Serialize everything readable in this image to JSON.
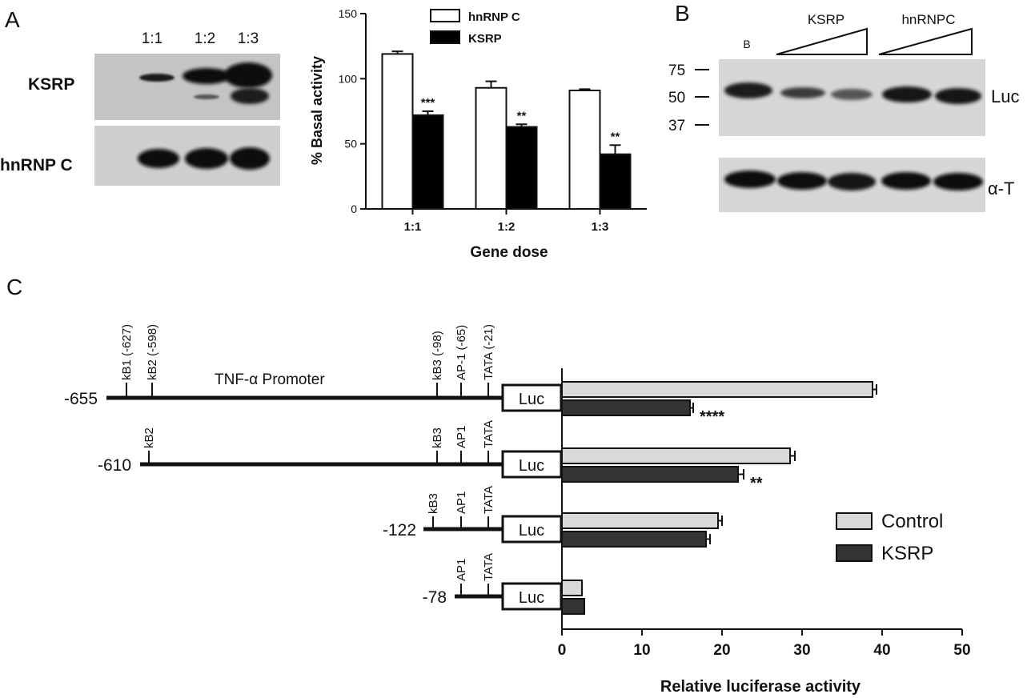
{
  "panels": {
    "a": {
      "letter": "A"
    },
    "b": {
      "letter": "B"
    },
    "c": {
      "letter": "C"
    }
  },
  "blot_a": {
    "lane_labels": [
      "1:1",
      "1:2",
      "1:3"
    ],
    "row_labels": [
      "KSRP",
      "hnRNP C"
    ]
  },
  "blot_b": {
    "lane0_label": "B",
    "group_labels": [
      "KSRP",
      "hnRNPC"
    ],
    "markers": [
      "75",
      "50",
      "37"
    ],
    "right_labels": [
      "Luc",
      "α-T"
    ]
  },
  "promoter": {
    "title": "TNF-α Promoter",
    "luc_label": "Luc",
    "constructs": [
      {
        "start": "-655",
        "sites": [
          "kB1 (-627)",
          "kB2 (-598)",
          "kB3 (-98)",
          "AP-1 (-65)",
          "TATA (-21)"
        ]
      },
      {
        "start": "-610",
        "sites": [
          "kB2",
          "kB3",
          "AP1",
          "TATA"
        ]
      },
      {
        "start": "-122",
        "sites": [
          "kB3",
          "AP1",
          "TATA"
        ]
      },
      {
        "start": "-78",
        "sites": [
          "AP1",
          "TATA"
        ]
      }
    ]
  },
  "chart_data": [
    {
      "type": "bar",
      "panel": "A",
      "categories": [
        "1:1",
        "1:2",
        "1:3"
      ],
      "series": [
        {
          "name": "hnRNP C",
          "values": [
            119,
            93,
            91
          ],
          "errors": [
            2,
            5,
            1
          ],
          "color": "#ffffff"
        },
        {
          "name": "KSRP",
          "values": [
            72,
            63,
            42
          ],
          "errors": [
            3,
            2,
            7
          ],
          "color": "#000000"
        }
      ],
      "significance": [
        "***",
        "**",
        "**"
      ],
      "xlabel": "Gene dose",
      "ylabel": "% Basal activity",
      "ylim": [
        0,
        150
      ],
      "yticks": [
        "0",
        "50",
        "100",
        "150"
      ],
      "legend_position": "top"
    },
    {
      "type": "bar",
      "panel": "C",
      "orientation": "horizontal",
      "categories": [
        "-655",
        "-610",
        "-122",
        "-78"
      ],
      "series": [
        {
          "name": "Control",
          "values": [
            38.8,
            28.5,
            19.5,
            2.5
          ],
          "errors": [
            0.5,
            0.6,
            0.5,
            0
          ],
          "color": "#d9d9d9"
        },
        {
          "name": "KSRP",
          "values": [
            16,
            22,
            18,
            2.8
          ],
          "errors": [
            0.4,
            0.7,
            0.5,
            0
          ],
          "color": "#333333"
        }
      ],
      "significance": [
        "****",
        "**",
        "",
        ""
      ],
      "xlabel": "Relative luciferase activity",
      "xlim": [
        0,
        50
      ],
      "xticks": [
        "0",
        "10",
        "20",
        "30",
        "40",
        "50"
      ],
      "legend_position": "right"
    }
  ]
}
